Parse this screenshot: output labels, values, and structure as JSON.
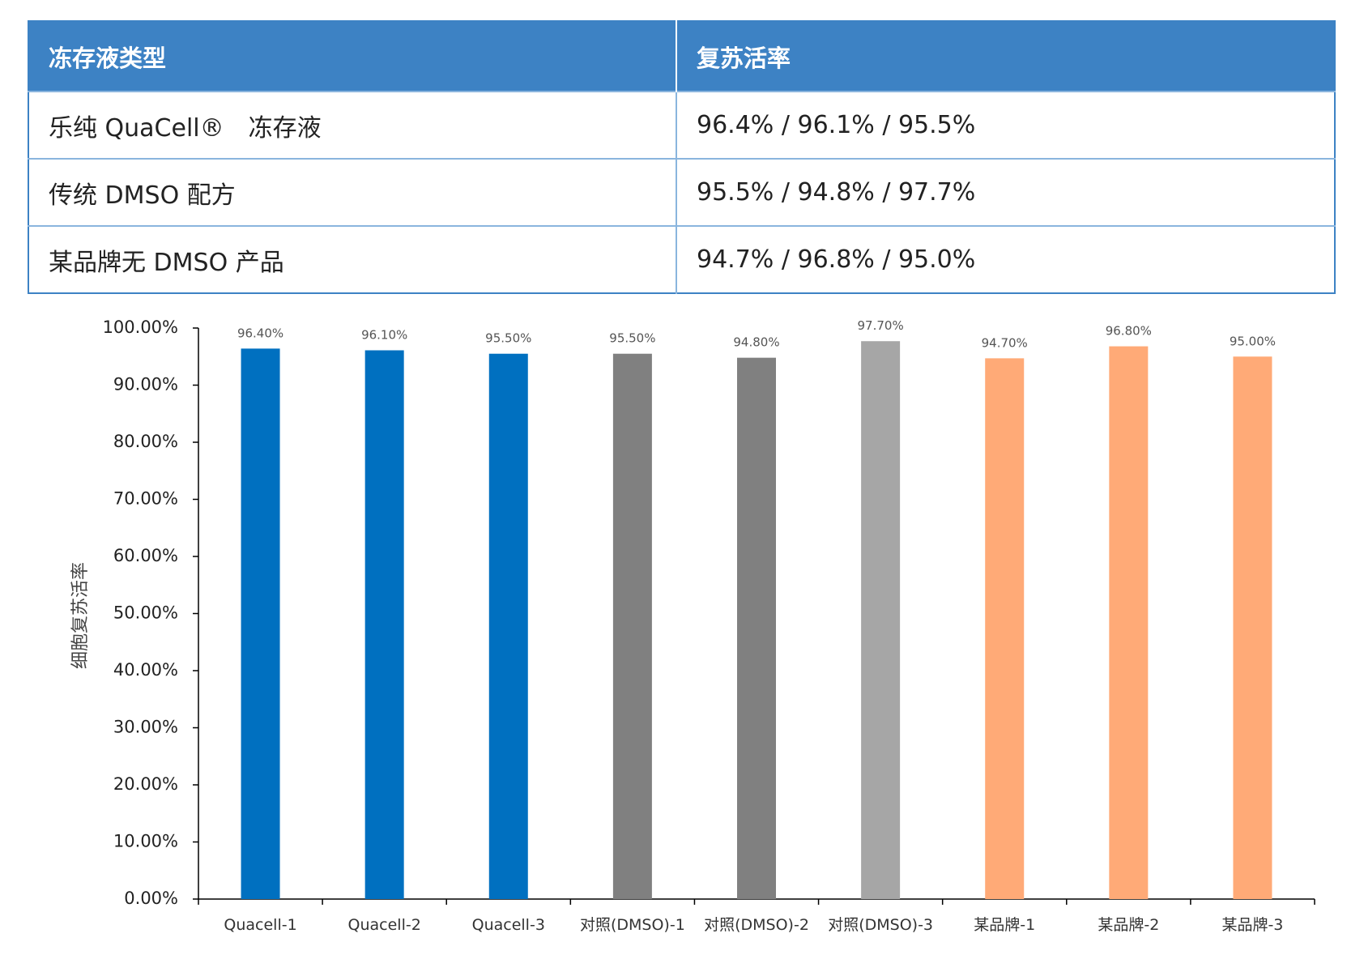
{
  "table": {
    "headers": [
      "冻存液类型",
      "复苏活率"
    ],
    "rows": [
      [
        "乐纯 QuaCell®　冻存液",
        "96.4% / 96.1% / 95.5%"
      ],
      [
        "传统 DMSO 配方",
        "95.5% / 94.8% / 97.7%"
      ],
      [
        "某品牌无 DMSO 产品",
        "94.7% / 96.8% / 95.0%"
      ]
    ]
  },
  "chart_data": {
    "type": "bar",
    "title": "",
    "xlabel": "",
    "ylabel": "细胞复苏活率",
    "ylim": [
      0,
      100
    ],
    "y_ticks": [
      "0.00%",
      "10.00%",
      "20.00%",
      "30.00%",
      "40.00%",
      "50.00%",
      "60.00%",
      "70.00%",
      "80.00%",
      "90.00%",
      "100.00%"
    ],
    "categories": [
      "Quacell-1",
      "Quacell-2",
      "Quacell-3",
      "对照(DMSO)-1",
      "对照(DMSO)-2",
      "对照(DMSO)-3",
      "某品牌-1",
      "某品牌-2",
      "某品牌-3"
    ],
    "values": [
      96.4,
      96.1,
      95.5,
      95.5,
      94.8,
      97.7,
      94.7,
      96.8,
      95.0
    ],
    "value_labels": [
      "96.40%",
      "96.10%",
      "95.50%",
      "95.50%",
      "94.80%",
      "97.70%",
      "94.70%",
      "96.80%",
      "95.00%"
    ],
    "bar_colors": [
      "#0070c0",
      "#0070c0",
      "#0070c0",
      "#808080",
      "#808080",
      "#a6a6a6",
      "#ffaa77",
      "#ffaa77",
      "#ffaa77"
    ],
    "grid": false,
    "legend": "none"
  }
}
